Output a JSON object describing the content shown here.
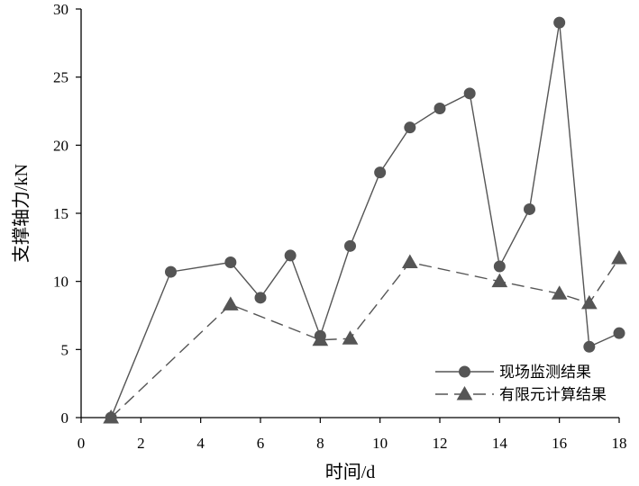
{
  "chart_data": {
    "type": "line",
    "xlabel": "时间/d",
    "ylabel": "支撑轴力/kN",
    "xlim": [
      0,
      18
    ],
    "ylim": [
      0,
      30
    ],
    "xticks": [
      0,
      2,
      4,
      6,
      8,
      10,
      12,
      14,
      16,
      18
    ],
    "yticks": [
      0,
      5,
      10,
      15,
      20,
      25,
      30
    ],
    "grid": false,
    "legend_position": "bottom-right",
    "series": [
      {
        "name": "现场监测结果",
        "marker": "circle",
        "line_style": "solid",
        "color": "#555555",
        "points": [
          {
            "x": 1,
            "y": 0
          },
          {
            "x": 3,
            "y": 10.7
          },
          {
            "x": 5,
            "y": 11.4
          },
          {
            "x": 6,
            "y": 8.8
          },
          {
            "x": 7,
            "y": 11.9
          },
          {
            "x": 8,
            "y": 6.0
          },
          {
            "x": 9,
            "y": 12.6
          },
          {
            "x": 10,
            "y": 18.0
          },
          {
            "x": 11,
            "y": 21.3
          },
          {
            "x": 12,
            "y": 22.7
          },
          {
            "x": 13,
            "y": 23.8
          },
          {
            "x": 14,
            "y": 11.1
          },
          {
            "x": 15,
            "y": 15.3
          },
          {
            "x": 16,
            "y": 29.0
          },
          {
            "x": 17,
            "y": 5.2
          },
          {
            "x": 18,
            "y": 6.2
          }
        ]
      },
      {
        "name": "有限元计算结果",
        "marker": "triangle",
        "line_style": "dashed",
        "color": "#555555",
        "points": [
          {
            "x": 1,
            "y": 0
          },
          {
            "x": 5,
            "y": 8.3
          },
          {
            "x": 8,
            "y": 5.7
          },
          {
            "x": 9,
            "y": 5.8
          },
          {
            "x": 11,
            "y": 11.4
          },
          {
            "x": 14,
            "y": 10.0
          },
          {
            "x": 16,
            "y": 9.1
          },
          {
            "x": 17,
            "y": 8.4
          },
          {
            "x": 18,
            "y": 11.7
          }
        ]
      }
    ]
  }
}
